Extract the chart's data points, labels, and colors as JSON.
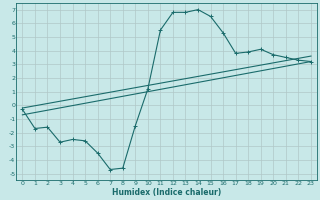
{
  "xlabel": "Humidex (Indice chaleur)",
  "bg_color": "#c8e8e8",
  "grid_color": "#b0c8c8",
  "line_color": "#1a6b6b",
  "xlim": [
    -0.5,
    23.5
  ],
  "ylim": [
    -5.5,
    7.5
  ],
  "xticks": [
    0,
    1,
    2,
    3,
    4,
    5,
    6,
    7,
    8,
    9,
    10,
    11,
    12,
    13,
    14,
    15,
    16,
    17,
    18,
    19,
    20,
    21,
    22,
    23
  ],
  "yticks": [
    -5,
    -4,
    -3,
    -2,
    -1,
    0,
    1,
    2,
    3,
    4,
    5,
    6,
    7
  ],
  "curve_x": [
    0,
    1,
    2,
    3,
    4,
    5,
    6,
    7,
    8,
    9,
    10,
    11,
    12,
    13,
    14,
    15,
    16,
    17,
    18,
    19,
    20,
    21,
    22,
    23
  ],
  "curve_y": [
    -0.3,
    -1.7,
    -1.6,
    -2.7,
    -2.5,
    -2.6,
    -3.5,
    -4.7,
    -4.6,
    -1.5,
    1.2,
    5.5,
    6.8,
    6.8,
    7.0,
    6.5,
    5.3,
    3.8,
    3.9,
    4.1,
    3.7,
    3.5,
    3.3,
    3.2
  ],
  "trend_x": [
    0,
    23
  ],
  "trend_y": [
    -0.7,
    3.2
  ],
  "trend2_x": [
    0,
    23
  ],
  "trend2_y": [
    -0.2,
    3.6
  ]
}
